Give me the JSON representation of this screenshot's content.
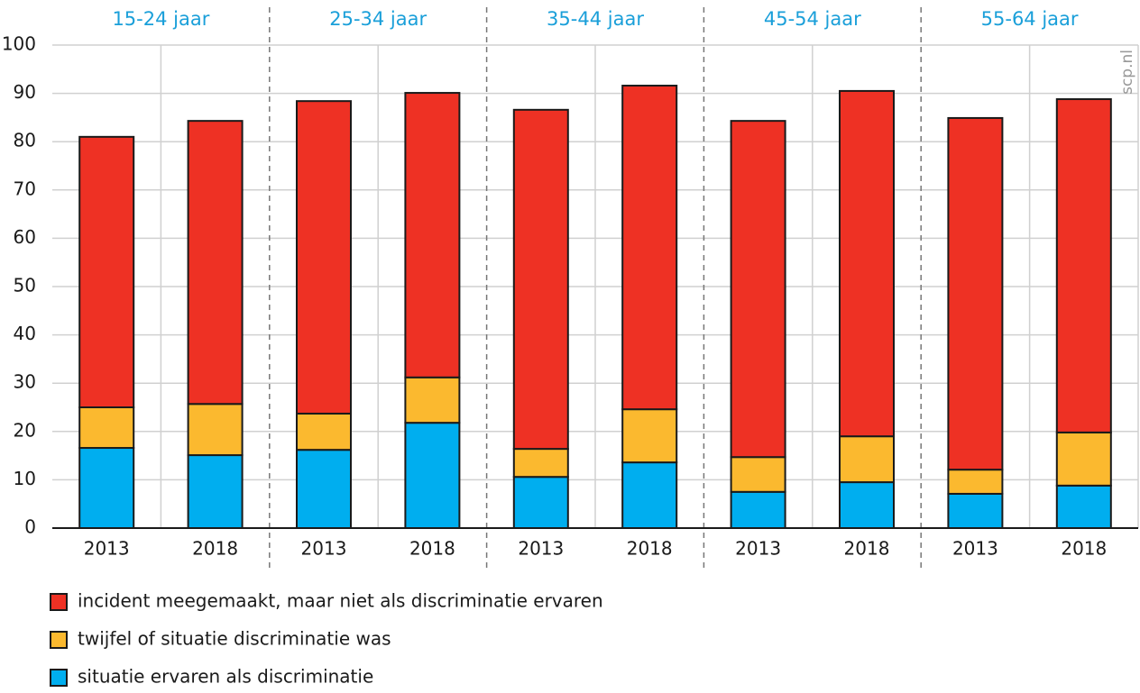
{
  "chart_data": {
    "type": "stacked_bar",
    "groups": [
      "15-24 jaar",
      "25-34 jaar",
      "35-44 jaar",
      "45-54 jaar",
      "55-64 jaar"
    ],
    "categories": [
      "2013",
      "2018",
      "2013",
      "2018",
      "2013",
      "2018",
      "2013",
      "2018",
      "2013",
      "2018"
    ],
    "series": [
      {
        "name": "situatie ervaren als discriminatie",
        "color": "#00aeef",
        "values": [
          16.6,
          15.1,
          16.2,
          21.8,
          10.6,
          13.6,
          7.5,
          9.5,
          7.1,
          8.8
        ]
      },
      {
        "name": "twijfel of situatie discriminatie was",
        "color": "#fbb92f",
        "values": [
          8.4,
          10.6,
          7.5,
          9.4,
          5.8,
          11.0,
          7.2,
          9.5,
          5.0,
          11.0
        ]
      },
      {
        "name": "incident meegemaakt, maar niet als discriminatie ervaren",
        "color": "#ee3124",
        "values": [
          56.0,
          58.6,
          64.7,
          58.9,
          70.2,
          67.0,
          69.6,
          71.5,
          72.8,
          69.0
        ]
      }
    ],
    "ylim": [
      0,
      100
    ],
    "yticks": [
      0,
      10,
      20,
      30,
      40,
      50,
      60,
      70,
      80,
      90,
      100
    ],
    "grid": true,
    "source": "scp.nl"
  }
}
